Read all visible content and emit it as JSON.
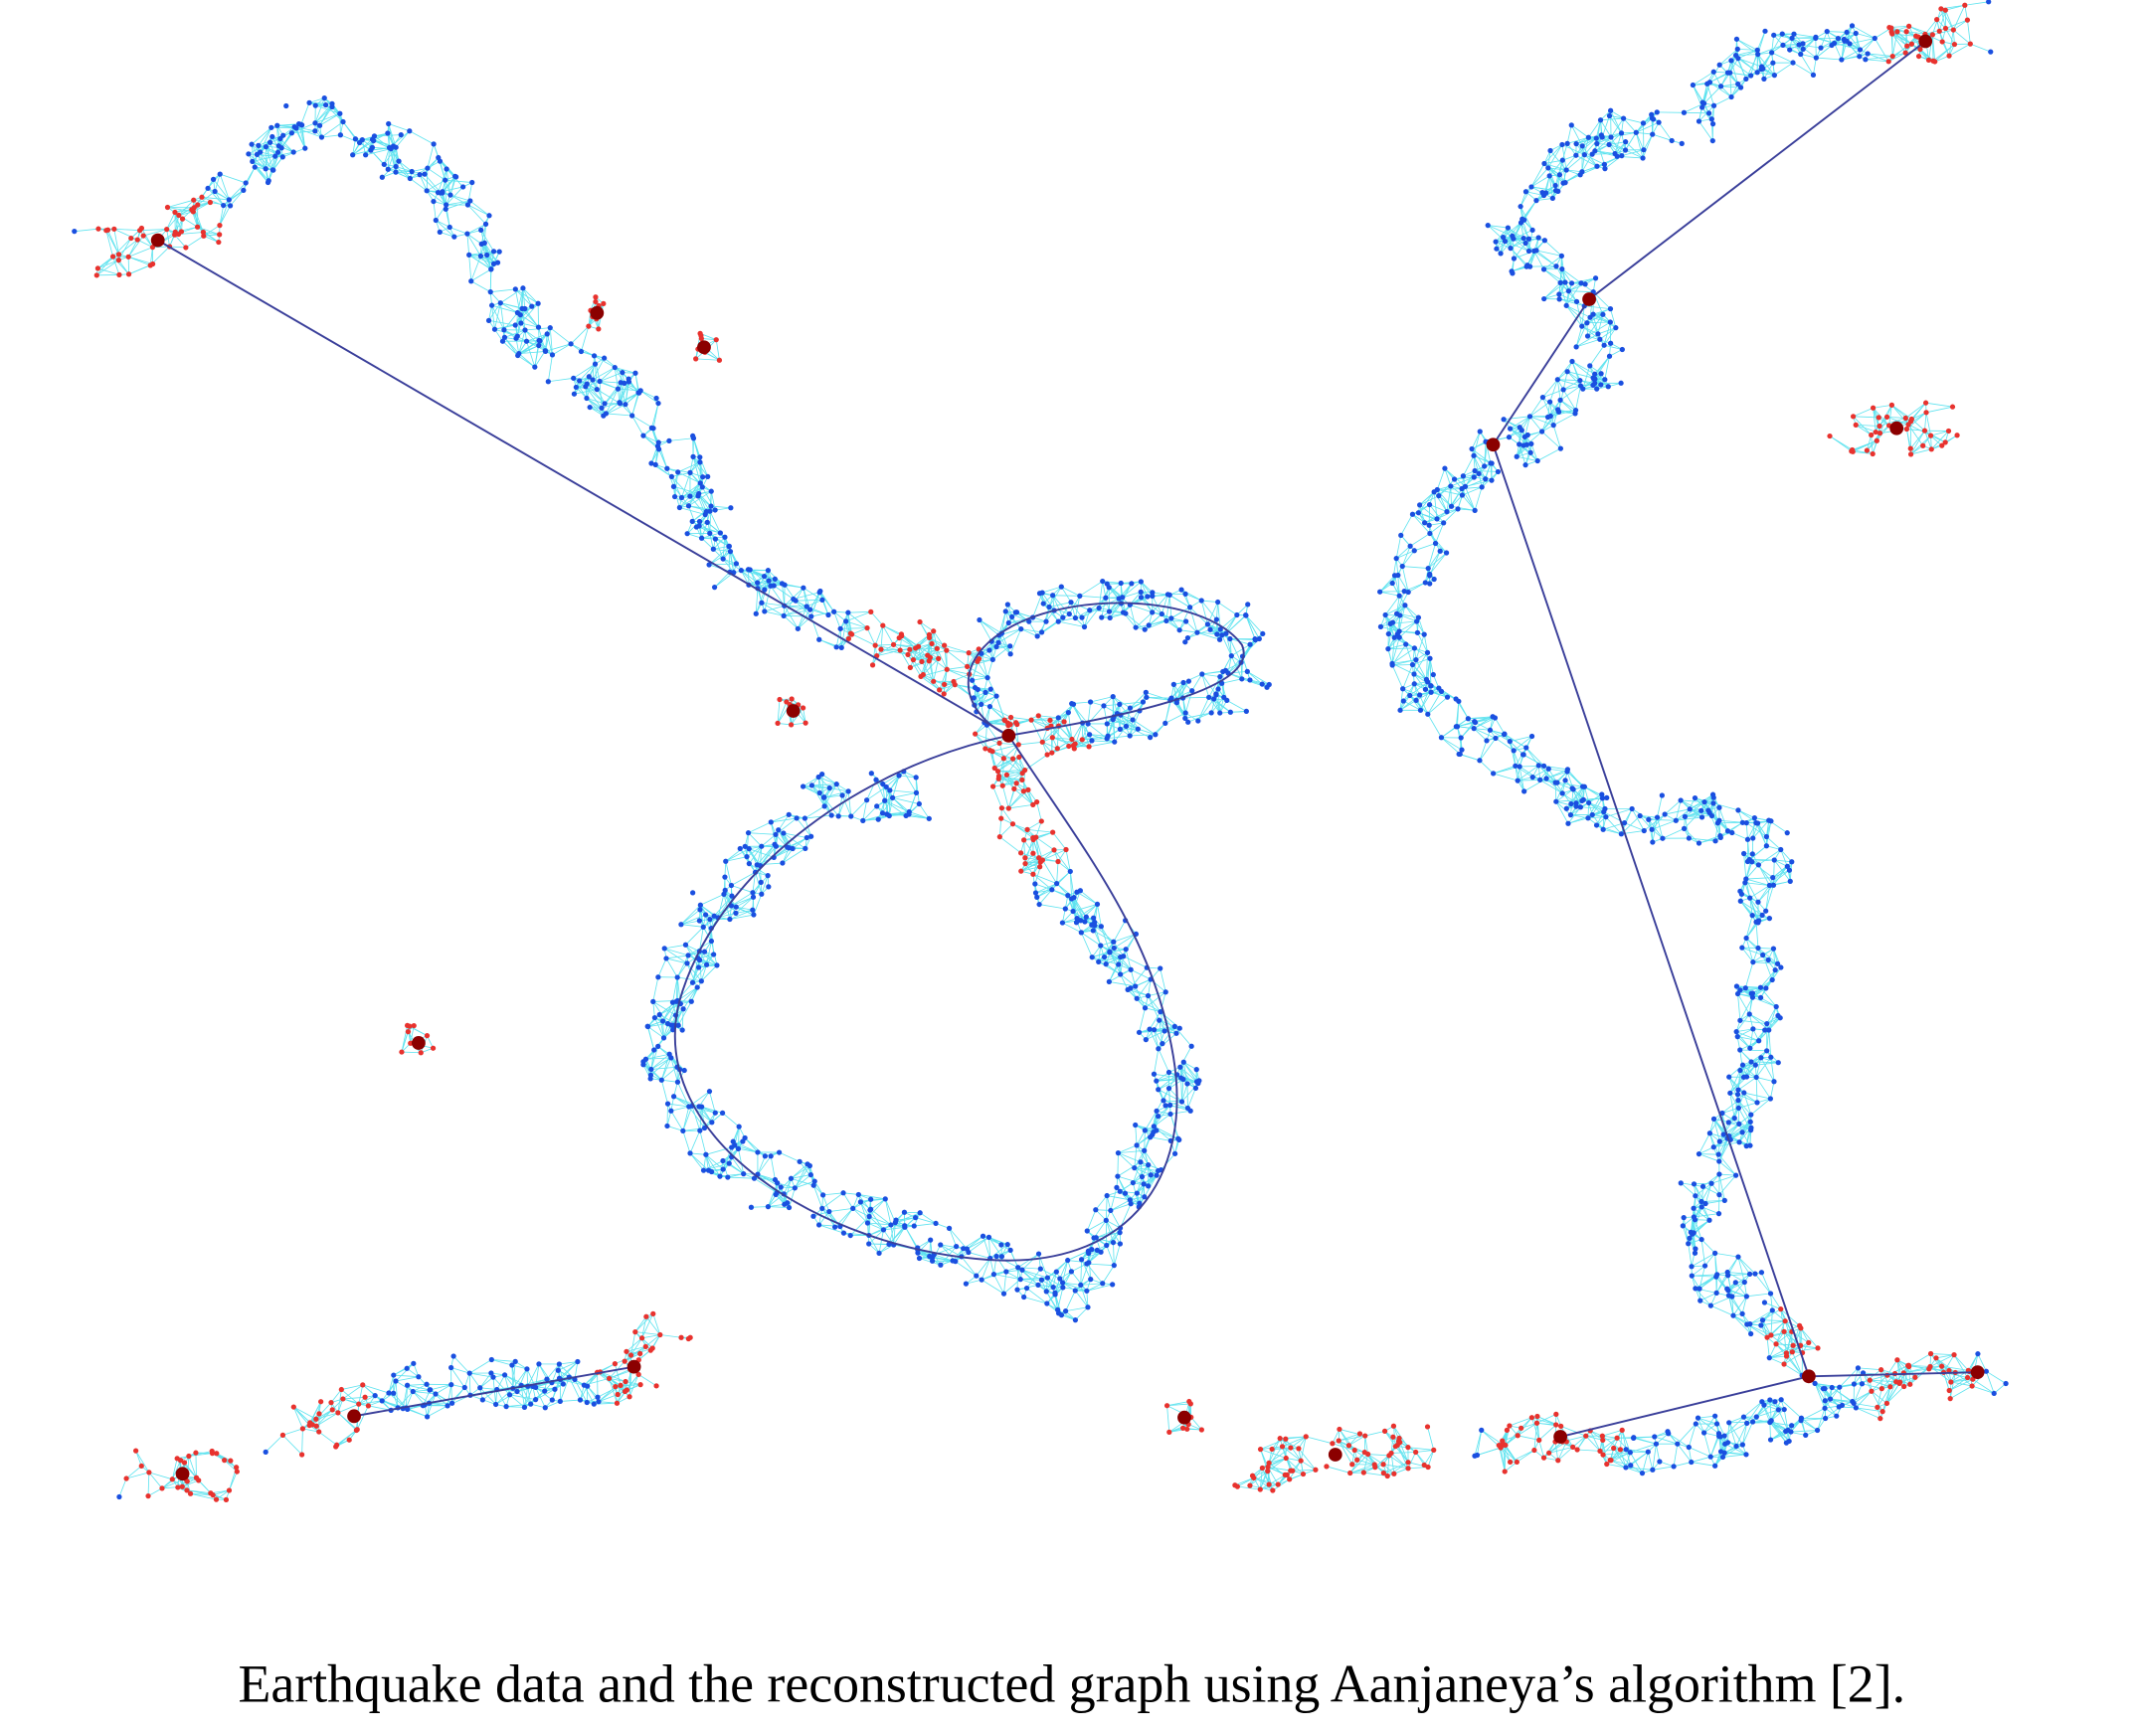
{
  "figure": {
    "caption": "Earthquake data and the reconstructed graph using Aanjaneya’s algorithm [2]."
  }
}
